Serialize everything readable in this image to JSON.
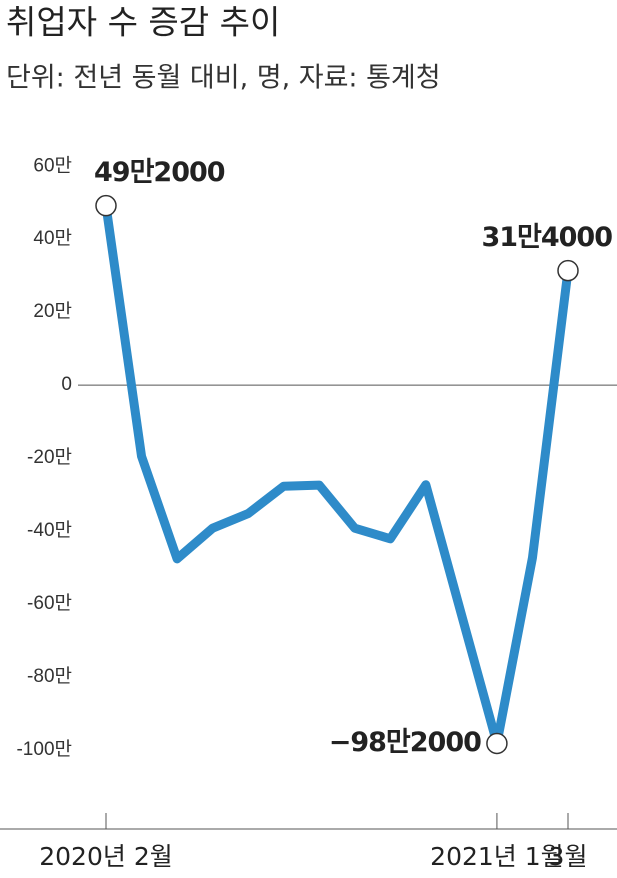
{
  "chart_data": {
    "type": "line",
    "title": "취업자 수 증감 추이",
    "subtitle": "단위: 전년 동월 대비, 명, 자료: 통계청",
    "categories": [
      "2020년 2월",
      null,
      null,
      null,
      null,
      null,
      null,
      null,
      null,
      null,
      null,
      "2021년 1월",
      null,
      "3월"
    ],
    "series": [
      {
        "name": "취업자 수 증감",
        "color": "#2e8bc9",
        "values": [
          49.2,
          -19.5,
          -47.6,
          -39.2,
          -35.2,
          -27.7,
          -27.4,
          -39.2,
          -42.1,
          -27.3,
          -62.8,
          -98.2,
          -47.3,
          31.4
        ],
        "value_labels": [
          "49만2000",
          null,
          null,
          null,
          null,
          null,
          null,
          null,
          null,
          null,
          null,
          "−98만2000",
          null,
          "31만4000"
        ]
      }
    ],
    "ylim": [
      -120,
      65
    ],
    "yticks": [
      {
        "value": 60,
        "label": "60만"
      },
      {
        "value": 40,
        "label": "40만"
      },
      {
        "value": 20,
        "label": "20만"
      },
      0,
      {
        "value": -20,
        "label": "-20만"
      },
      {
        "value": -40,
        "label": "-40만"
      },
      {
        "value": -60,
        "label": "-60만"
      },
      {
        "value": -80,
        "label": "-80만"
      },
      {
        "value": -100,
        "label": "-100만"
      }
    ],
    "grid": false
  }
}
